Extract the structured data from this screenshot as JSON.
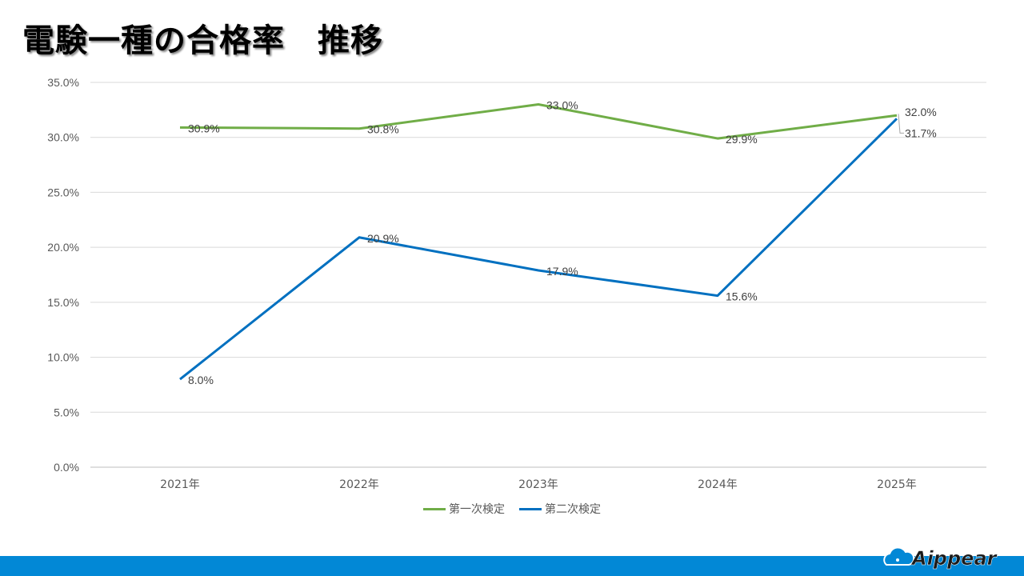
{
  "title": "電験一種の合格率　推移",
  "brand": {
    "logo_text": "Aippear",
    "bar_color": "#0288d6"
  },
  "chart_data": {
    "type": "line",
    "title": "",
    "categories": [
      "2021年",
      "2022年",
      "2023年",
      "2024年",
      "2025年"
    ],
    "ylim": [
      0,
      35
    ],
    "yticks": [
      "0.0%",
      "5.0%",
      "10.0%",
      "15.0%",
      "20.0%",
      "25.0%",
      "30.0%",
      "35.0%"
    ],
    "grid": true,
    "legend_position": "bottom",
    "series": [
      {
        "name": "第一次検定",
        "color": "#70ad47",
        "values": [
          30.9,
          30.8,
          33.0,
          29.9,
          32.0
        ],
        "labels": [
          "30.9%",
          "30.8%",
          "33.0%",
          "29.9%",
          "32.0%"
        ]
      },
      {
        "name": "第二次検定",
        "color": "#0070c0",
        "values": [
          8.0,
          20.9,
          17.9,
          15.6,
          31.7
        ],
        "labels": [
          "8.0%",
          "20.9%",
          "17.9%",
          "15.6%",
          "31.7%"
        ]
      }
    ]
  }
}
